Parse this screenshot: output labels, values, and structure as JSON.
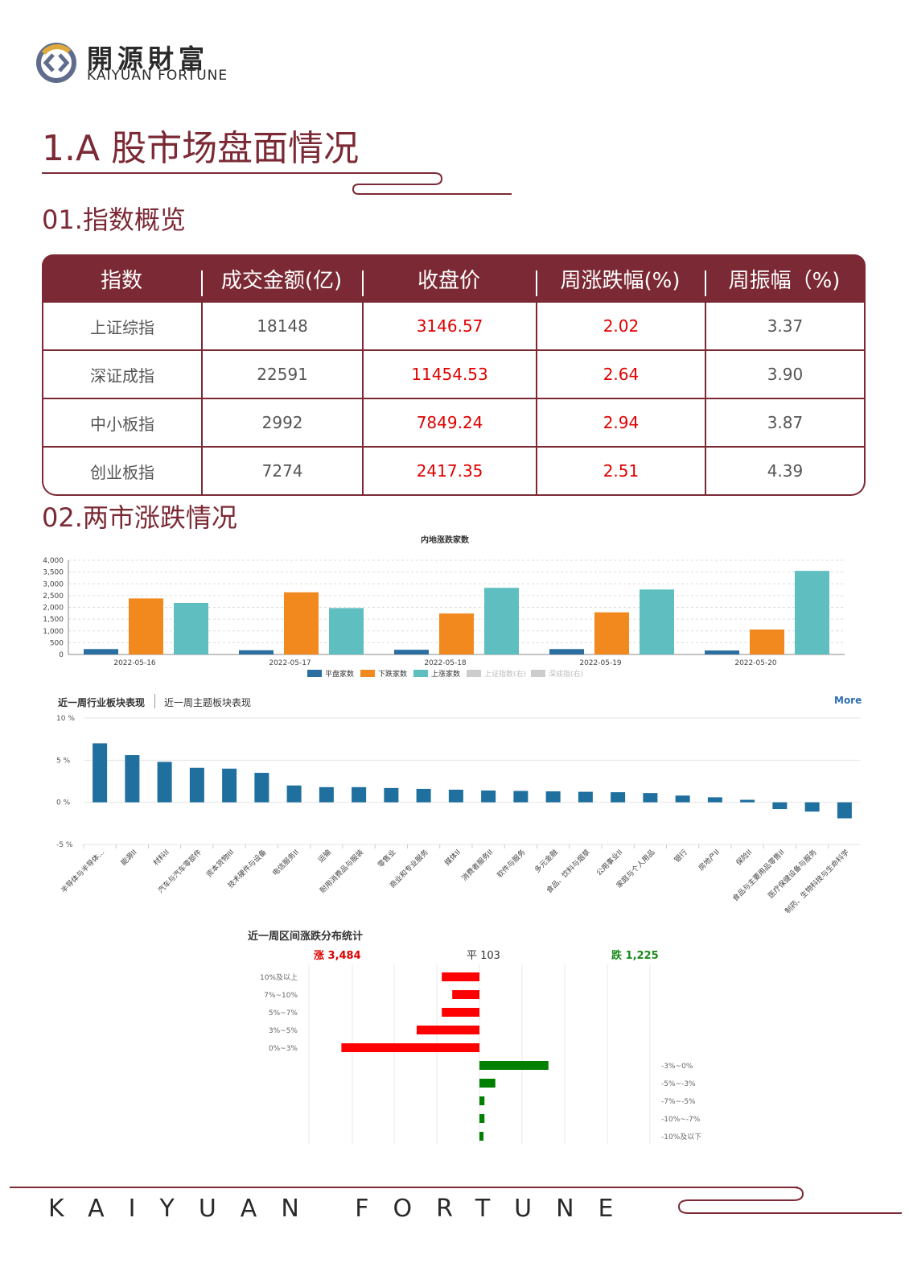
{
  "brand": {
    "cn": "開源財富",
    "en": "KAIYUAN FORTUNE",
    "footer": "KAIYUAN FORTUNE"
  },
  "section_title": "1.A 股市场盘面情况",
  "sub1": "01.指数概览",
  "sub2": "02.两市涨跌情况",
  "table": {
    "headers": [
      "指数",
      "成交金额(亿)",
      "收盘价",
      "周涨跌幅(%)",
      "周振幅（%)"
    ],
    "rows": [
      [
        "上证综指",
        "18148",
        "3146.57",
        "2.02",
        "3.37"
      ],
      [
        "深证成指",
        "22591",
        "11454.53",
        "2.64",
        "3.90"
      ],
      [
        "中小板指",
        "2992",
        "7849.24",
        "2.94",
        "3.87"
      ],
      [
        "创业板指",
        "7274",
        "2417.35",
        "2.51",
        "4.39"
      ]
    ]
  },
  "chart_data": [
    {
      "type": "bar",
      "title": "内地涨跌家数",
      "categories": [
        "2022-05-16",
        "2022-05-17",
        "2022-05-18",
        "2022-05-19",
        "2022-05-20"
      ],
      "series": [
        {
          "name": "平盘家数",
          "color": "#2a6fa0",
          "values": [
            230,
            180,
            200,
            230,
            170
          ]
        },
        {
          "name": "下跌家数",
          "color": "#f2891e",
          "values": [
            2380,
            2640,
            1740,
            1790,
            1060
          ]
        },
        {
          "name": "上涨家数",
          "color": "#5fbebf",
          "values": [
            2190,
            1970,
            2830,
            2760,
            3550
          ]
        }
      ],
      "legend_extra": [
        "上证指数(右)",
        "深成指(右)"
      ],
      "yticks": [
        "0",
        "500",
        "1,000",
        "1,500",
        "2,000",
        "2,500",
        "3,000",
        "3,500",
        "4,000"
      ],
      "ylim": [
        0,
        4000
      ]
    },
    {
      "type": "bar",
      "tabs": [
        "近一周行业板块表现",
        "近一周主题板块表现"
      ],
      "more": "More",
      "yticks": [
        "10 %",
        "5 %",
        "0 %",
        "-5 %"
      ],
      "ylim": [
        -5,
        10
      ],
      "color": "#1f6f9f",
      "categories": [
        "半导体与半导体...",
        "能源II",
        "材料II",
        "汽车与汽车零部件",
        "资本货物III",
        "技术硬件与设备",
        "电信服务II",
        "运输",
        "耐用消费品与服装",
        "零售业",
        "商业和专业服务",
        "媒体II",
        "消费者服务II",
        "软件与服务",
        "多元金融",
        "食品、饮料与烟草",
        "公用事业II",
        "家庭与个人用品",
        "银行",
        "房地产II",
        "保险II",
        "食品与主要用品零售II",
        "医疗保健设备与服务",
        "制药、生物科技与生命科学"
      ],
      "values": [
        7.0,
        5.6,
        4.8,
        4.1,
        4.0,
        3.5,
        2.0,
        1.8,
        1.8,
        1.7,
        1.6,
        1.5,
        1.4,
        1.35,
        1.3,
        1.25,
        1.2,
        1.1,
        0.8,
        0.6,
        0.3,
        -0.8,
        -1.1,
        -1.9
      ]
    },
    {
      "type": "bar",
      "title": "近一周区间涨跌分布统计",
      "summary": {
        "up": "涨 3,484",
        "flat": "平 103",
        "down": "跌 1,225"
      },
      "up_categories": [
        "10%及以上",
        "7%~10%",
        "5%~7%",
        "3%~5%",
        "0%~3%"
      ],
      "up_values": [
        90,
        65,
        90,
        150,
        330
      ],
      "down_categories": [
        "-3%~0%",
        "-5%~-3%",
        "-7%~-5%",
        "-10%~-7%",
        "-10%及以下"
      ],
      "down_values": [
        165,
        38,
        12,
        12,
        8
      ],
      "up_color": "#ff0000",
      "down_color": "#008000"
    }
  ]
}
